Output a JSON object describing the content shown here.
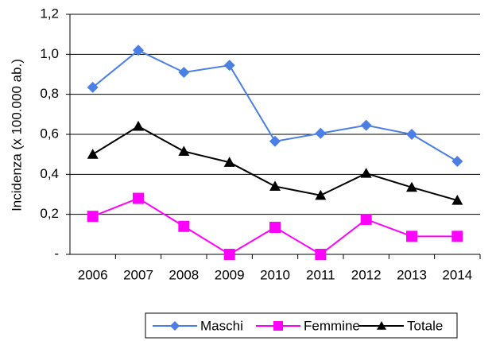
{
  "chart_data": {
    "type": "line",
    "y_label": "Incidenza (x 100.000 ab.)",
    "categories": [
      "2006",
      "2007",
      "2008",
      "2009",
      "2010",
      "2011",
      "2012",
      "2013",
      "2014"
    ],
    "series": [
      {
        "name": "Maschi",
        "color": "#4a7fe6",
        "marker": "diamond",
        "values": [
          0.835,
          1.02,
          0.91,
          0.945,
          0.565,
          0.605,
          0.645,
          0.6,
          0.465
        ]
      },
      {
        "name": "Femmine",
        "color": "#ff00ff",
        "marker": "square",
        "values": [
          0.19,
          0.28,
          0.14,
          0.0,
          0.135,
          0.0,
          0.175,
          0.09,
          0.09
        ]
      },
      {
        "name": "Totale",
        "color": "#000000",
        "marker": "triangle",
        "values": [
          0.5,
          0.64,
          0.515,
          0.46,
          0.34,
          0.295,
          0.405,
          0.335,
          0.27
        ]
      }
    ],
    "ylim": [
      0,
      1.2
    ],
    "yticks": [
      {
        "value": 0,
        "label": "-"
      },
      {
        "value": 0.2,
        "label": "0,2"
      },
      {
        "value": 0.4,
        "label": "0,4"
      },
      {
        "value": 0.6,
        "label": "0,6"
      },
      {
        "value": 0.8,
        "label": "0,8"
      },
      {
        "value": 1.0,
        "label": "1,0"
      },
      {
        "value": 1.2,
        "label": "1,2"
      }
    ],
    "grid": true,
    "legend": "bottom"
  }
}
